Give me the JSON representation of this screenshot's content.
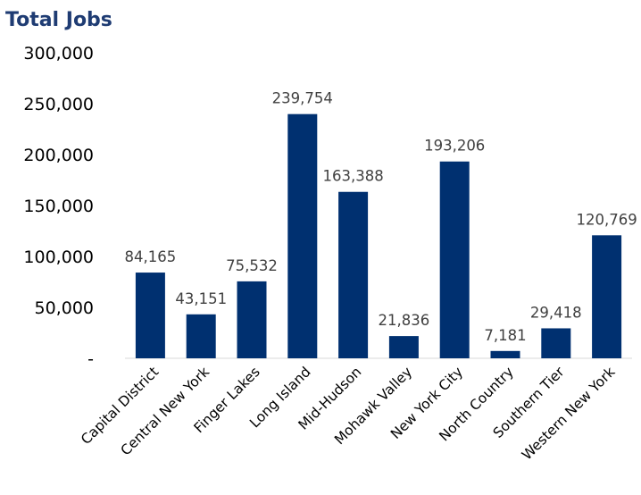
{
  "chart_data": {
    "type": "bar",
    "title": "Total Jobs",
    "categories": [
      "Capital District",
      "Central New York",
      "Finger Lakes",
      "Long Island",
      "Mid-Hudson",
      "Mohawk Valley",
      "New York City",
      "North Country",
      "Southern Tier",
      "Western New York"
    ],
    "values": [
      84165,
      43151,
      75532,
      239754,
      163388,
      21836,
      193206,
      7181,
      29418,
      120769
    ],
    "data_labels": [
      "84,165",
      "43,151",
      "75,532",
      "239,754",
      "163,388",
      "21,836",
      "193,206",
      "7,181",
      "29,418",
      "120,769"
    ],
    "ylim": [
      0,
      300000
    ],
    "yticks": [
      300000,
      250000,
      200000,
      150000,
      100000,
      50000,
      0
    ],
    "ytick_labels": [
      "300,000",
      "250,000",
      "200,000",
      "150,000",
      "100,000",
      "50,000",
      "-"
    ],
    "grid": false,
    "legend": "none",
    "colors": {
      "bar": "#003070",
      "title": "#1f3c73",
      "axis": "#d9d9d9"
    }
  }
}
